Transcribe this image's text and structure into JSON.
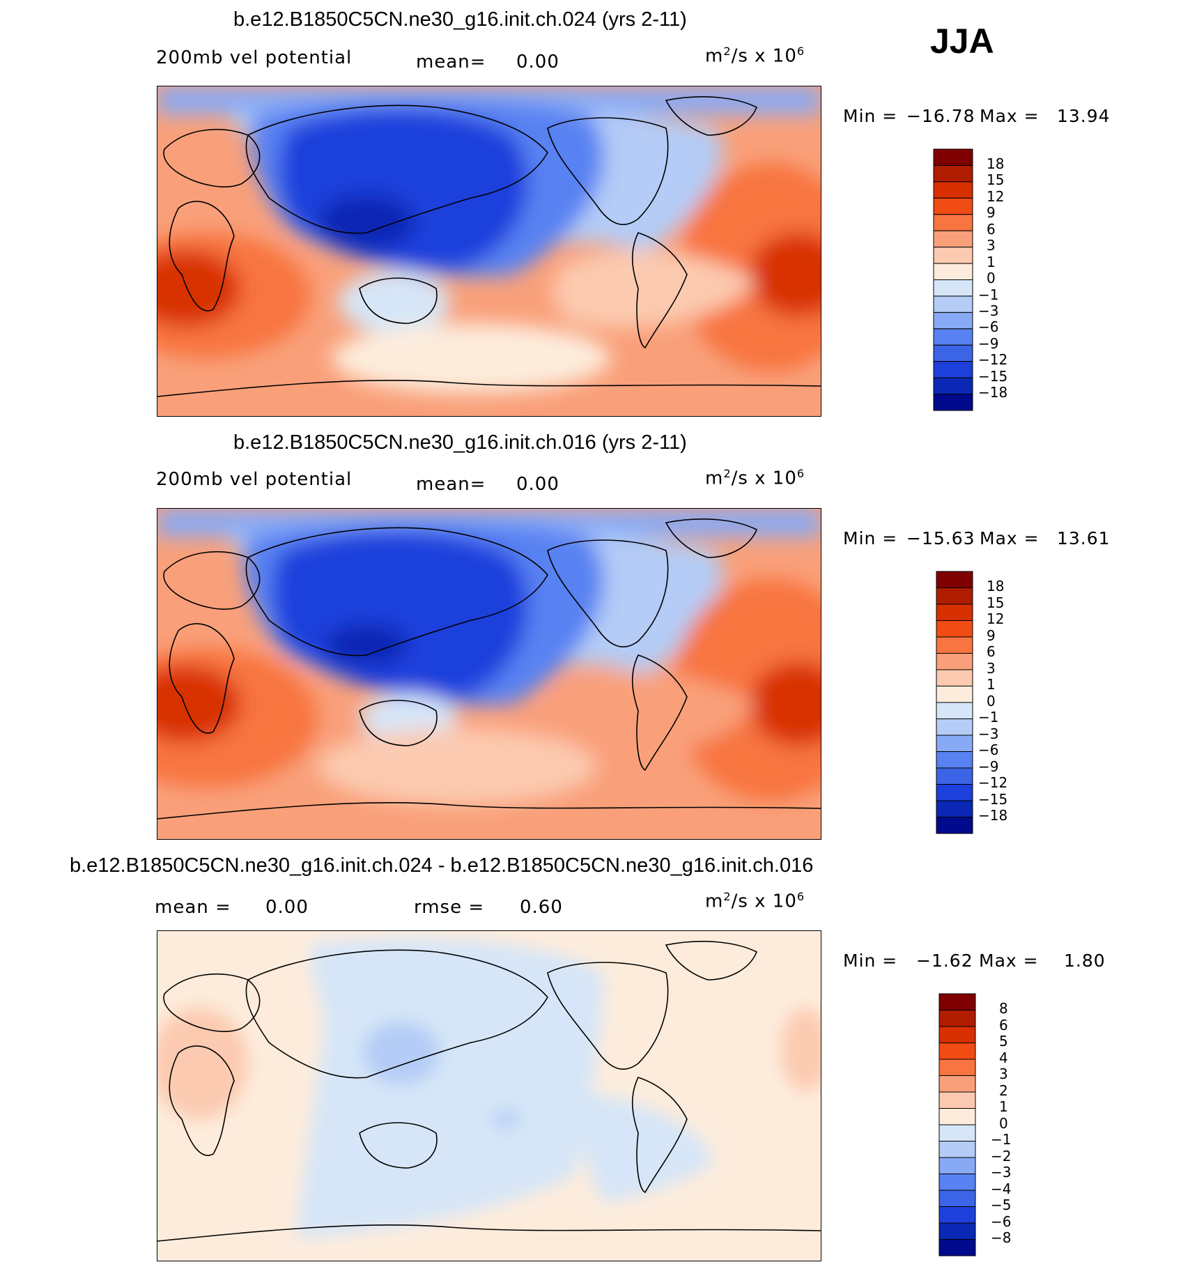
{
  "season": "JJA",
  "units_prefix": "m",
  "units_exp": "2",
  "units_mid": "/s x 10",
  "units_exp2": "6",
  "panels": [
    {
      "title": "b.e12.B1850C5CN.ne30_g16.init.ch.024 (yrs 2-11)",
      "variable": "200mb vel potential",
      "mean_label": "mean=",
      "mean_value": "0.00",
      "min_label": "Min =",
      "min_value": "−16.78",
      "max_label": "Max =",
      "max_value": "13.94"
    },
    {
      "title": "b.e12.B1850C5CN.ne30_g16.init.ch.016 (yrs 2-11)",
      "variable": "200mb vel potential",
      "mean_label": "mean=",
      "mean_value": "0.00",
      "min_label": "Min =",
      "min_value": "−15.63",
      "max_label": "Max =",
      "max_value": "13.61"
    },
    {
      "title": "b.e12.B1850C5CN.ne30_g16.init.ch.024 - b.e12.B1850C5CN.ne30_g16.init.ch.016",
      "mean_label": "mean =",
      "mean_value": "0.00",
      "rmse_label": "rmse =",
      "rmse_value": "0.60",
      "min_label": "Min =",
      "min_value": "−1.62",
      "max_label": "Max =",
      "max_value": "1.80"
    }
  ],
  "colorbar_colors": [
    "#7f0000",
    "#b01c00",
    "#d83000",
    "#f04c14",
    "#f87440",
    "#f9a07a",
    "#fccab0",
    "#fdecdc",
    "#d6e6f8",
    "#b4ccf6",
    "#88aaf5",
    "#5882f2",
    "#3c64e6",
    "#1e40dc",
    "#0a28b4",
    "#000a8c"
  ],
  "colorbar_ticks_main": [
    "18",
    "15",
    "12",
    "9",
    "6",
    "3",
    "1",
    "0",
    "−1",
    "−3",
    "−6",
    "−9",
    "−12",
    "−15",
    "−18"
  ],
  "colorbar_ticks_diff": [
    "8",
    "6",
    "5",
    "4",
    "3",
    "2",
    "1",
    "0",
    "−1",
    "−2",
    "−3",
    "−4",
    "−5",
    "−6",
    "−8"
  ],
  "chart_data": [
    {
      "type": "heatmap",
      "title": "b.e12.B1850C5CN.ne30_g16.init.ch.024 (yrs 2-11)",
      "variable": "200mb vel potential",
      "units": "m²/s x 10⁶",
      "mean": 0.0,
      "min": -16.78,
      "max": 13.94,
      "contour_levels": [
        -18,
        -15,
        -12,
        -9,
        -6,
        -3,
        -1,
        0,
        1,
        3,
        6,
        9,
        12,
        15,
        18
      ]
    },
    {
      "type": "heatmap",
      "title": "b.e12.B1850C5CN.ne30_g16.init.ch.016 (yrs 2-11)",
      "variable": "200mb vel potential",
      "units": "m²/s x 10⁶",
      "mean": 0.0,
      "min": -15.63,
      "max": 13.61,
      "contour_levels": [
        -18,
        -15,
        -12,
        -9,
        -6,
        -3,
        -1,
        0,
        1,
        3,
        6,
        9,
        12,
        15,
        18
      ]
    },
    {
      "type": "heatmap",
      "title": "b.e12.B1850C5CN.ne30_g16.init.ch.024 - b.e12.B1850C5CN.ne30_g16.init.ch.016",
      "units": "m²/s x 10⁶",
      "mean": 0.0,
      "rmse": 0.6,
      "min": -1.62,
      "max": 1.8,
      "contour_levels": [
        -8,
        -6,
        -5,
        -4,
        -3,
        -2,
        -1,
        0,
        1,
        2,
        3,
        4,
        5,
        6,
        8
      ]
    }
  ]
}
